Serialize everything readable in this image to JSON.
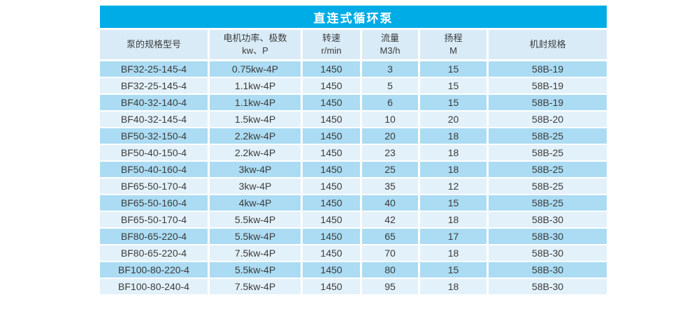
{
  "colors": {
    "title_bg": "#00ACE6",
    "header_bg": "#D8EBF7",
    "row_dark": "#ABDCF3",
    "row_light": "#E3F1FA",
    "text": "#3b3b3b",
    "title_text": "#ffffff",
    "page_bg": "#ffffff"
  },
  "table": {
    "title": "直连式循环泵",
    "columns": [
      {
        "id": "model",
        "label": "泵的规格型号",
        "sub": ""
      },
      {
        "id": "power",
        "label": "电机功率、极数",
        "sub": "kw、P"
      },
      {
        "id": "speed",
        "label": "转速",
        "sub": "r/min"
      },
      {
        "id": "flow",
        "label": "流量",
        "sub": "M3/h"
      },
      {
        "id": "head",
        "label": "扬程",
        "sub": "M"
      },
      {
        "id": "seal",
        "label": "机封规格",
        "sub": ""
      }
    ],
    "rows": [
      [
        "BF32-25-145-4",
        "0.75kw-4P",
        "1450",
        "3",
        "15",
        "58B-19"
      ],
      [
        "BF32-25-145-4",
        "1.1kw-4P",
        "1450",
        "5",
        "15",
        "58B-19"
      ],
      [
        "BF40-32-140-4",
        "1.1kw-4P",
        "1450",
        "6",
        "15",
        "58B-19"
      ],
      [
        "BF40-32-145-4",
        "1.5kw-4P",
        "1450",
        "10",
        "20",
        "58B-20"
      ],
      [
        "BF50-32-150-4",
        "2.2kw-4P",
        "1450",
        "20",
        "18",
        "58B-25"
      ],
      [
        "BF50-40-150-4",
        "2.2kw-4P",
        "1450",
        "23",
        "18",
        "58B-25"
      ],
      [
        "BF50-40-160-4",
        "3kw-4P",
        "1450",
        "25",
        "18",
        "58B-25"
      ],
      [
        "BF65-50-170-4",
        "3kw-4P",
        "1450",
        "35",
        "12",
        "58B-25"
      ],
      [
        "BF65-50-160-4",
        "4kw-4P",
        "1450",
        "40",
        "15",
        "58B-25"
      ],
      [
        "BF65-50-170-4",
        "5.5kw-4P",
        "1450",
        "42",
        "18",
        "58B-30"
      ],
      [
        "BF80-65-220-4",
        "5.5kw-4P",
        "1450",
        "65",
        "17",
        "58B-30"
      ],
      [
        "BF80-65-220-4",
        "7.5kw-4P",
        "1450",
        "70",
        "18",
        "58B-30"
      ],
      [
        "BF100-80-220-4",
        "5.5kw-4P",
        "1450",
        "80",
        "15",
        "58B-30"
      ],
      [
        "BF100-80-240-4",
        "7.5kw-4P",
        "1450",
        "95",
        "18",
        "58B-30"
      ]
    ]
  }
}
